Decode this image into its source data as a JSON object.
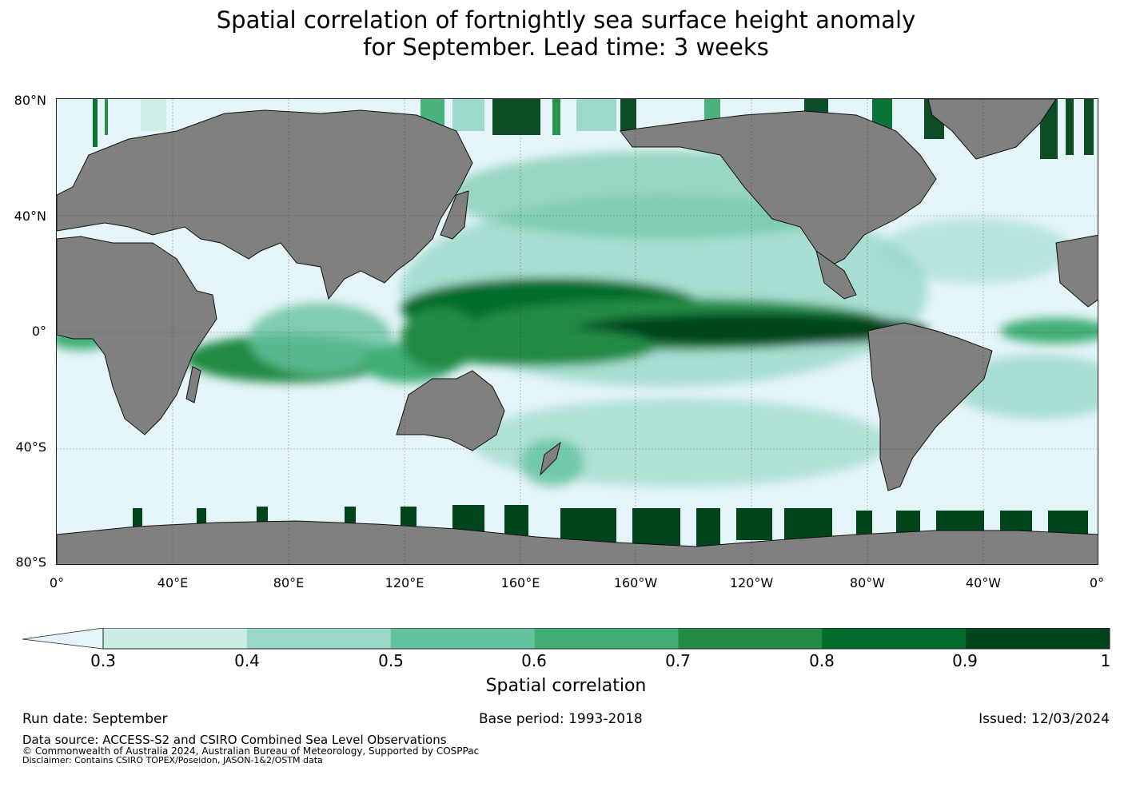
{
  "title": {
    "line1": "Spatial correlation of fortnightly sea surface height anomaly",
    "line2": "for September. Lead time: 3 weeks"
  },
  "axes": {
    "lat_ticks": [
      "80°N",
      "40°N",
      "0°",
      "40°S",
      "80°S"
    ],
    "lon_ticks": [
      "0°",
      "40°E",
      "80°E",
      "120°E",
      "160°E",
      "160°W",
      "120°W",
      "80°W",
      "40°W",
      "0°"
    ]
  },
  "colorbar": {
    "label": "Spatial correlation",
    "ticks": [
      "0.3",
      "0.4",
      "0.5",
      "0.6",
      "0.7",
      "0.8",
      "0.9",
      "1"
    ],
    "colors": [
      "#e4f4f9",
      "#ccede5",
      "#99d8c9",
      "#65c29f",
      "#41ae76",
      "#238b45",
      "#006d2c",
      "#00441b"
    ]
  },
  "footer": {
    "run_date": "Run date: September",
    "base_period": "Base period: 1993-2018",
    "issued": "Issued: 12/03/2024",
    "data_source": "Data source: ACCESS-S2 and CSIRO Combined Sea Level Observations",
    "copyright": "© Commonwealth of Australia 2024, Australian Bureau of Meteorology, Supported by COSPPac",
    "disclaimer": "Disclaimer: Contains CSIRO TOPEX/Poseidon, JASON-1&2/OSTM data"
  },
  "map": {
    "land_color": "#808080",
    "ocean_low_color": "#e4f4f9"
  }
}
